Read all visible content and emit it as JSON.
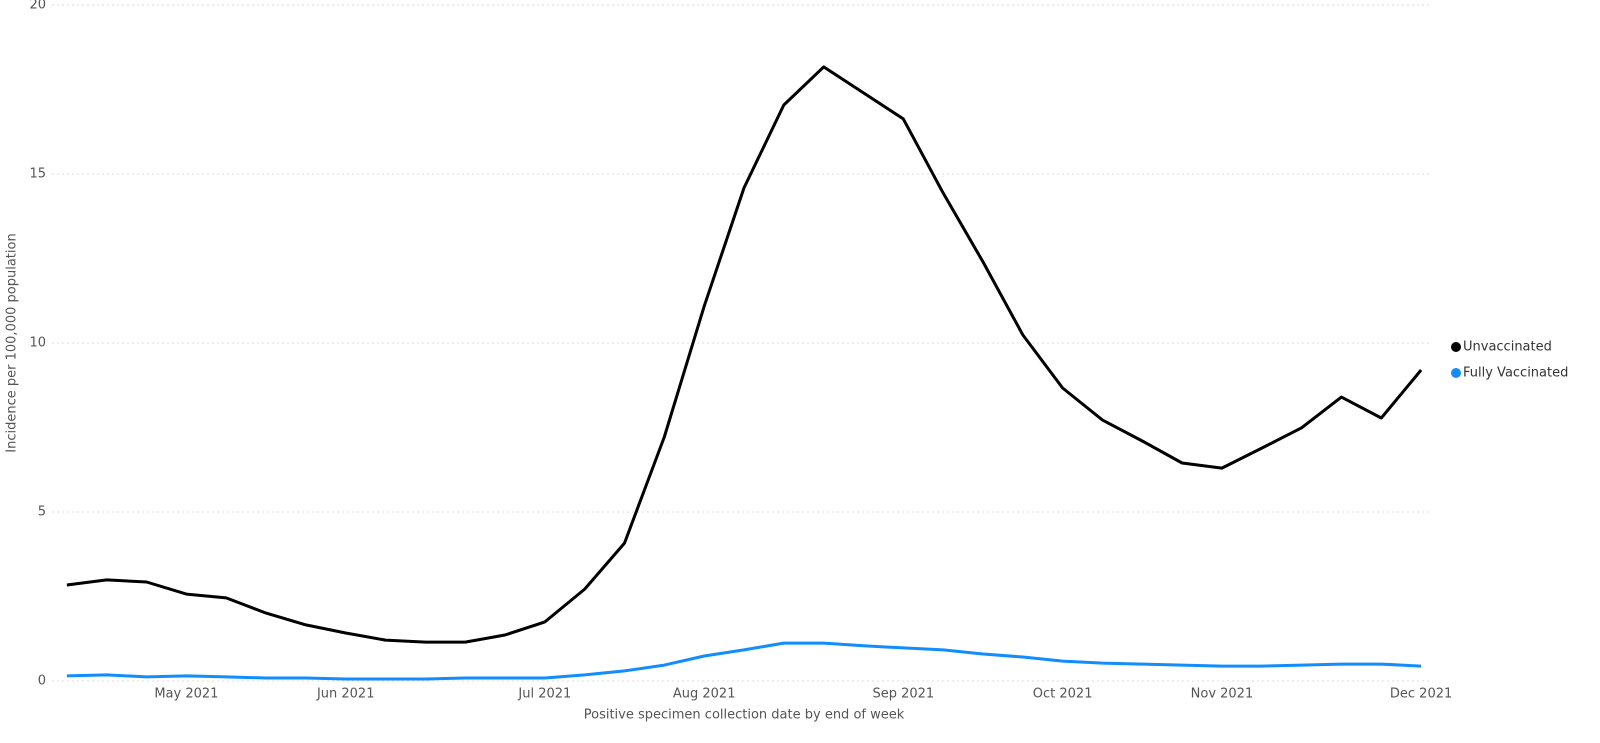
{
  "chart_data": {
    "type": "line",
    "x_label": "Positive specimen collection date by end of week",
    "y_label": "Incidence per 100,000 population",
    "categories": [
      null,
      null,
      null,
      "May 2021",
      null,
      null,
      null,
      "Jun 2021",
      null,
      null,
      null,
      null,
      "Jul 2021",
      null,
      null,
      null,
      "Aug 2021",
      null,
      null,
      null,
      null,
      "Sep 2021",
      null,
      null,
      null,
      "Oct 2021",
      null,
      null,
      null,
      "Nov 2021",
      null,
      null,
      null,
      null,
      "Dec 2021"
    ],
    "series": [
      {
        "name": "Unvaccinated",
        "color": "#000000",
        "values": [
          2.84,
          2.99,
          2.93,
          2.57,
          2.46,
          2.01,
          1.66,
          1.42,
          1.21,
          1.15,
          1.15,
          1.36,
          1.75,
          2.72,
          4.08,
          7.22,
          11.09,
          14.59,
          17.04,
          18.17,
          17.4,
          16.63,
          14.44,
          12.4,
          10.24,
          8.67,
          7.72,
          7.1,
          6.45,
          6.3,
          6.89,
          7.49,
          8.4,
          7.78,
          9.2
        ]
      },
      {
        "name": "Fully Vaccinated",
        "color": "#118dff",
        "values": [
          0.15,
          0.18,
          0.12,
          0.15,
          0.12,
          0.09,
          0.09,
          0.06,
          0.06,
          0.06,
          0.09,
          0.09,
          0.09,
          0.18,
          0.3,
          0.47,
          0.74,
          0.92,
          1.12,
          1.12,
          1.04,
          0.98,
          0.92,
          0.8,
          0.71,
          0.59,
          0.53,
          0.5,
          0.47,
          0.44,
          0.44,
          0.47,
          0.5,
          0.5,
          0.44
        ]
      }
    ],
    "ylim": [
      0,
      20
    ],
    "yticks": [
      0,
      5,
      10,
      15,
      20
    ],
    "grid": true,
    "legend": "right"
  }
}
